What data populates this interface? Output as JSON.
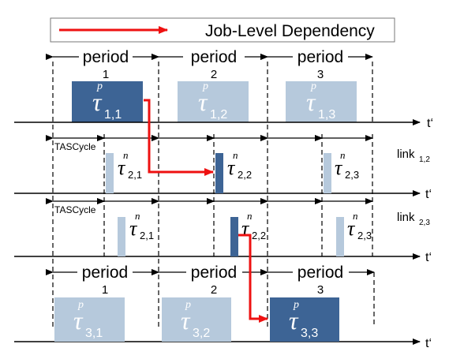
{
  "legend": {
    "label": "Job-Level Dependency"
  },
  "colors": {
    "dark": "#3d6495",
    "light": "#b6c9dc",
    "arrow": "#ee1111"
  },
  "time_label": "t‘",
  "tascycle_label": "TASCycle",
  "period_label": "period",
  "top_row": {
    "numbers": [
      "1",
      "2",
      "3"
    ],
    "tasks": [
      {
        "base": "τ",
        "sup": "p",
        "sub": "1,1"
      },
      {
        "base": "τ",
        "sup": "p",
        "sub": "1,2"
      },
      {
        "base": "τ",
        "sup": "p",
        "sub": "1,3"
      }
    ]
  },
  "link12": {
    "label": "link",
    "label_sub": "1,2",
    "tasks": [
      {
        "base": "τ",
        "sup": "n",
        "sub": "2,1"
      },
      {
        "base": "τ",
        "sup": "n",
        "sub": "2,2"
      },
      {
        "base": "τ",
        "sup": "n",
        "sub": "2,3"
      }
    ]
  },
  "link23": {
    "label": "link",
    "label_sub": "2,3",
    "tasks": [
      {
        "base": "τ",
        "sup": "n",
        "sub": "2,1"
      },
      {
        "base": "τ",
        "sup": "n",
        "sub": "2,2"
      },
      {
        "base": "τ",
        "sup": "n",
        "sub": "2,3"
      }
    ]
  },
  "bottom_row": {
    "numbers": [
      "1",
      "2",
      "3"
    ],
    "tasks": [
      {
        "base": "τ",
        "sup": "p",
        "sub": "3,1"
      },
      {
        "base": "τ",
        "sup": "p",
        "sub": "3,2"
      },
      {
        "base": "τ",
        "sup": "p",
        "sub": "3,3"
      }
    ]
  }
}
